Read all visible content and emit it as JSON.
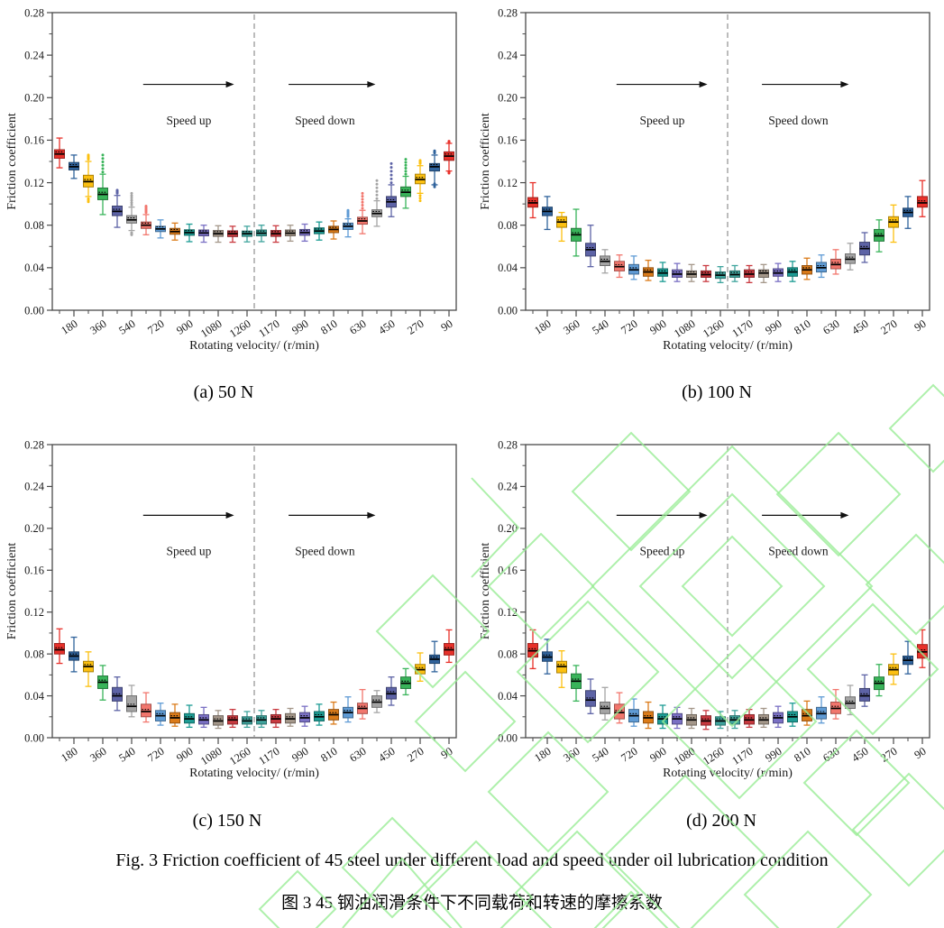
{
  "figure": {
    "caption_en": "Fig. 3 Friction coefficient of 45 steel under different load and speed under oil lubrication condition",
    "caption_zh": "图 3 45 钢油润滑条件下不同载荷和转速的摩擦系数"
  },
  "axes": {
    "ylabel": "Friction coefficient",
    "xlabel": "Rotating velocity/ (r/min)",
    "ymax": 0.28,
    "yticks": [
      "0.00",
      "0.04",
      "0.08",
      "0.12",
      "0.16",
      "0.20",
      "0.24",
      "0.28"
    ],
    "xtick_labels": [
      "180",
      "360",
      "540",
      "720",
      "900",
      "1080",
      "1260",
      "1170",
      "990",
      "810",
      "630",
      "450",
      "270",
      "90"
    ],
    "speed_sequence": [
      90,
      180,
      270,
      360,
      450,
      540,
      630,
      720,
      810,
      900,
      990,
      1080,
      1170,
      1260,
      1260,
      1170,
      1080,
      990,
      900,
      810,
      720,
      630,
      540,
      450,
      360,
      270,
      180,
      90
    ]
  },
  "annotations": {
    "speed_up": "Speed up",
    "speed_down": "Speed down"
  },
  "palette": [
    "#E8312A",
    "#30639C",
    "#FCC010",
    "#39B45A",
    "#5D63A6",
    "#A5A5A5",
    "#F2766D",
    "#5F9BD5",
    "#DB7B19",
    "#1D9C94",
    "#7A70C4",
    "#A4978A",
    "#C93A40",
    "#3FA49D"
  ],
  "colors": {
    "frame": "#4a4a4a",
    "dash": "#8f8f8f",
    "arrow": "#111111",
    "median": "#000000",
    "watermark": "#9AEC96"
  },
  "box_format": "[median, q1, q3, whisker_low, whisker_high, outlier_high_extent, outlier_low_extent]",
  "chart_data": [
    {
      "panel": "a",
      "caption": "(a) 50 N",
      "load_n": 50,
      "type": "box",
      "ylim": [
        0,
        0.28
      ],
      "boxes": [
        [
          0.147,
          0.143,
          0.151,
          0.134,
          0.162,
          null,
          null
        ],
        [
          0.135,
          0.132,
          0.139,
          0.124,
          0.146,
          null,
          null
        ],
        [
          0.121,
          0.116,
          0.127,
          0.107,
          0.14,
          0.146,
          0.102
        ],
        [
          0.109,
          0.104,
          0.115,
          0.09,
          0.128,
          0.146,
          null
        ],
        [
          0.093,
          0.089,
          0.098,
          0.078,
          0.108,
          0.113,
          null
        ],
        [
          0.085,
          0.082,
          0.089,
          0.075,
          0.097,
          0.11,
          0.071
        ],
        [
          0.08,
          0.077,
          0.083,
          0.071,
          0.09,
          0.098,
          null
        ],
        [
          0.0765,
          0.074,
          0.079,
          0.068,
          0.085,
          null,
          null
        ],
        [
          0.074,
          0.0715,
          0.077,
          0.066,
          0.082,
          null,
          null
        ],
        [
          0.073,
          0.0705,
          0.0757,
          0.0645,
          0.081,
          null,
          null
        ],
        [
          0.0727,
          0.07,
          0.0755,
          0.064,
          0.08,
          null,
          null
        ],
        [
          0.072,
          0.0695,
          0.075,
          0.064,
          0.0795,
          null,
          null
        ],
        [
          0.072,
          0.0693,
          0.0747,
          0.064,
          0.079,
          null,
          null
        ],
        [
          0.072,
          0.0695,
          0.0745,
          0.0643,
          0.079,
          null,
          null
        ],
        [
          0.0725,
          0.07,
          0.0755,
          0.0645,
          0.08,
          null,
          null
        ],
        [
          0.072,
          0.0695,
          0.075,
          0.064,
          0.0795,
          null,
          null
        ],
        [
          0.0725,
          0.07,
          0.0755,
          0.065,
          0.08,
          null,
          null
        ],
        [
          0.073,
          0.0705,
          0.076,
          0.065,
          0.081,
          null,
          null
        ],
        [
          0.0745,
          0.072,
          0.0775,
          0.066,
          0.083,
          null,
          null
        ],
        [
          0.076,
          0.073,
          0.079,
          0.067,
          0.084,
          null,
          null
        ],
        [
          0.079,
          0.076,
          0.082,
          0.069,
          0.086,
          0.094,
          null
        ],
        [
          0.084,
          0.081,
          0.0875,
          0.072,
          0.094,
          0.11,
          null
        ],
        [
          0.091,
          0.088,
          0.0945,
          0.079,
          0.103,
          0.122,
          null
        ],
        [
          0.102,
          0.097,
          0.107,
          0.088,
          0.118,
          0.138,
          null
        ],
        [
          0.111,
          0.107,
          0.116,
          0.096,
          0.126,
          0.142,
          null
        ],
        [
          0.123,
          0.119,
          0.128,
          0.11,
          0.136,
          0.141,
          0.103
        ],
        [
          0.135,
          0.131,
          0.138,
          0.118,
          0.146,
          0.15,
          0.119
        ],
        [
          0.145,
          0.141,
          0.149,
          0.131,
          0.157,
          0.158,
          0.13
        ]
      ]
    },
    {
      "panel": "b",
      "caption": "(b) 100 N",
      "load_n": 100,
      "type": "box",
      "ylim": [
        0,
        0.28
      ],
      "boxes": [
        [
          0.101,
          0.097,
          0.106,
          0.087,
          0.12,
          null,
          null
        ],
        [
          0.093,
          0.089,
          0.097,
          0.076,
          0.107,
          null,
          null
        ],
        [
          0.083,
          0.078,
          0.088,
          0.065,
          0.092,
          null,
          null
        ],
        [
          0.071,
          0.065,
          0.077,
          0.051,
          0.095,
          null,
          null
        ],
        [
          0.057,
          0.051,
          0.063,
          0.041,
          0.08,
          null,
          null
        ],
        [
          0.046,
          0.042,
          0.051,
          0.035,
          0.057,
          null,
          null
        ],
        [
          0.041,
          0.037,
          0.046,
          0.031,
          0.052,
          null,
          null
        ],
        [
          0.038,
          0.034,
          0.043,
          0.029,
          0.051,
          null,
          null
        ],
        [
          0.036,
          0.032,
          0.04,
          0.028,
          0.047,
          null,
          null
        ],
        [
          0.035,
          0.032,
          0.039,
          0.027,
          0.045,
          null,
          null
        ],
        [
          0.034,
          0.031,
          0.038,
          0.027,
          0.044,
          null,
          null
        ],
        [
          0.034,
          0.031,
          0.037,
          0.027,
          0.043,
          null,
          null
        ],
        [
          0.0335,
          0.031,
          0.037,
          0.027,
          0.042,
          null,
          null
        ],
        [
          0.033,
          0.03,
          0.036,
          0.026,
          0.041,
          null,
          null
        ],
        [
          0.0335,
          0.031,
          0.037,
          0.027,
          0.042,
          null,
          null
        ],
        [
          0.034,
          0.031,
          0.038,
          0.026,
          0.042,
          null,
          null
        ],
        [
          0.035,
          0.031,
          0.038,
          0.026,
          0.043,
          null,
          null
        ],
        [
          0.035,
          0.032,
          0.039,
          0.027,
          0.044,
          null,
          null
        ],
        [
          0.036,
          0.032,
          0.04,
          0.027,
          0.046,
          null,
          null
        ],
        [
          0.038,
          0.034,
          0.042,
          0.029,
          0.049,
          null,
          null
        ],
        [
          0.04,
          0.036,
          0.045,
          0.031,
          0.052,
          null,
          null
        ],
        [
          0.043,
          0.039,
          0.048,
          0.034,
          0.057,
          null,
          null
        ],
        [
          0.048,
          0.044,
          0.053,
          0.038,
          0.063,
          null,
          null
        ],
        [
          0.058,
          0.052,
          0.064,
          0.045,
          0.073,
          null,
          null
        ],
        [
          0.07,
          0.065,
          0.076,
          0.055,
          0.085,
          null,
          null
        ],
        [
          0.083,
          0.078,
          0.088,
          0.064,
          0.099,
          null,
          null
        ],
        [
          0.092,
          0.088,
          0.096,
          0.077,
          0.107,
          null,
          null
        ],
        [
          0.101,
          0.097,
          0.107,
          0.088,
          0.122,
          null,
          null
        ]
      ]
    },
    {
      "panel": "c",
      "caption": "(c) 150 N",
      "load_n": 150,
      "type": "box",
      "ylim": [
        0,
        0.28
      ],
      "boxes": [
        [
          0.084,
          0.08,
          0.09,
          0.071,
          0.104,
          null,
          null
        ],
        [
          0.078,
          0.074,
          0.082,
          0.063,
          0.096,
          null,
          null
        ],
        [
          0.068,
          0.063,
          0.073,
          0.049,
          0.082,
          null,
          null
        ],
        [
          0.053,
          0.047,
          0.059,
          0.036,
          0.069,
          null,
          null
        ],
        [
          0.04,
          0.035,
          0.048,
          0.026,
          0.058,
          null,
          null
        ],
        [
          0.03,
          0.025,
          0.04,
          0.02,
          0.05,
          null,
          null
        ],
        [
          0.025,
          0.02,
          0.032,
          0.015,
          0.043,
          null,
          null
        ],
        [
          0.021,
          0.016,
          0.026,
          0.012,
          0.033,
          null,
          null
        ],
        [
          0.019,
          0.014,
          0.024,
          0.011,
          0.032,
          null,
          null
        ],
        [
          0.018,
          0.014,
          0.023,
          0.01,
          0.031,
          null,
          null
        ],
        [
          0.017,
          0.013,
          0.022,
          0.01,
          0.029,
          null,
          null
        ],
        [
          0.016,
          0.012,
          0.021,
          0.009,
          0.026,
          null,
          null
        ],
        [
          0.017,
          0.013,
          0.021,
          0.01,
          0.027,
          null,
          null
        ],
        [
          0.016,
          0.013,
          0.02,
          0.01,
          0.025,
          null,
          null
        ],
        [
          0.017,
          0.013,
          0.021,
          0.01,
          0.026,
          null,
          null
        ],
        [
          0.018,
          0.014,
          0.022,
          0.01,
          0.027,
          null,
          null
        ],
        [
          0.018,
          0.014,
          0.023,
          0.011,
          0.028,
          null,
          null
        ],
        [
          0.019,
          0.015,
          0.024,
          0.011,
          0.03,
          null,
          null
        ],
        [
          0.02,
          0.016,
          0.025,
          0.012,
          0.032,
          null,
          null
        ],
        [
          0.022,
          0.017,
          0.027,
          0.013,
          0.034,
          null,
          null
        ],
        [
          0.024,
          0.019,
          0.029,
          0.015,
          0.039,
          null,
          null
        ],
        [
          0.028,
          0.023,
          0.033,
          0.018,
          0.046,
          null,
          null
        ],
        [
          0.034,
          0.029,
          0.04,
          0.024,
          0.045,
          null,
          null
        ],
        [
          0.042,
          0.037,
          0.048,
          0.031,
          0.058,
          null,
          null
        ],
        [
          0.052,
          0.047,
          0.058,
          0.041,
          0.066,
          null,
          null
        ],
        [
          0.065,
          0.061,
          0.07,
          0.054,
          0.081,
          null,
          null
        ],
        [
          0.075,
          0.071,
          0.079,
          0.063,
          0.092,
          null,
          null
        ],
        [
          0.084,
          0.079,
          0.09,
          0.072,
          0.103,
          null,
          null
        ]
      ]
    },
    {
      "panel": "d",
      "caption": "(d) 200 N",
      "load_n": 200,
      "type": "box",
      "ylim": [
        0,
        0.28
      ],
      "boxes": [
        [
          0.083,
          0.077,
          0.09,
          0.066,
          0.103,
          null,
          null
        ],
        [
          0.077,
          0.073,
          0.082,
          0.061,
          0.094,
          null,
          null
        ],
        [
          0.068,
          0.062,
          0.073,
          0.048,
          0.083,
          null,
          null
        ],
        [
          0.054,
          0.047,
          0.061,
          0.035,
          0.069,
          null,
          null
        ],
        [
          0.036,
          0.03,
          0.045,
          0.023,
          0.056,
          null,
          null
        ],
        [
          0.028,
          0.023,
          0.034,
          0.017,
          0.048,
          null,
          null
        ],
        [
          0.024,
          0.018,
          0.032,
          0.014,
          0.043,
          null,
          null
        ],
        [
          0.021,
          0.015,
          0.027,
          0.011,
          0.037,
          null,
          null
        ],
        [
          0.019,
          0.014,
          0.025,
          0.009,
          0.034,
          null,
          null
        ],
        [
          0.018,
          0.013,
          0.023,
          0.009,
          0.031,
          null,
          null
        ],
        [
          0.018,
          0.013,
          0.023,
          0.009,
          0.029,
          null,
          null
        ],
        [
          0.017,
          0.012,
          0.022,
          0.009,
          0.028,
          null,
          null
        ],
        [
          0.016,
          0.012,
          0.021,
          0.008,
          0.026,
          null,
          null
        ],
        [
          0.016,
          0.012,
          0.02,
          0.009,
          0.025,
          null,
          null
        ],
        [
          0.017,
          0.013,
          0.021,
          0.009,
          0.026,
          null,
          null
        ],
        [
          0.017,
          0.013,
          0.022,
          0.01,
          0.027,
          null,
          null
        ],
        [
          0.017,
          0.013,
          0.022,
          0.01,
          0.028,
          null,
          null
        ],
        [
          0.019,
          0.014,
          0.024,
          0.01,
          0.03,
          null,
          null
        ],
        [
          0.02,
          0.015,
          0.025,
          0.011,
          0.033,
          null,
          null
        ],
        [
          0.021,
          0.016,
          0.027,
          0.012,
          0.035,
          null,
          null
        ],
        [
          0.023,
          0.018,
          0.029,
          0.014,
          0.039,
          null,
          null
        ],
        [
          0.028,
          0.023,
          0.034,
          0.018,
          0.046,
          null,
          null
        ],
        [
          0.033,
          0.028,
          0.039,
          0.022,
          0.05,
          null,
          null
        ],
        [
          0.04,
          0.035,
          0.047,
          0.03,
          0.06,
          null,
          null
        ],
        [
          0.052,
          0.046,
          0.058,
          0.04,
          0.07,
          null,
          null
        ],
        [
          0.065,
          0.06,
          0.07,
          0.051,
          0.08,
          null,
          null
        ],
        [
          0.074,
          0.07,
          0.078,
          0.061,
          0.092,
          null,
          null
        ],
        [
          0.082,
          0.076,
          0.089,
          0.067,
          0.103,
          null,
          null
        ]
      ]
    }
  ]
}
